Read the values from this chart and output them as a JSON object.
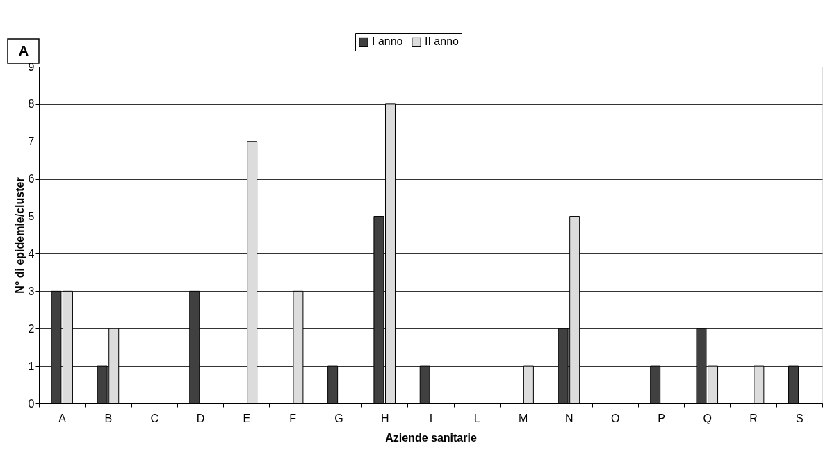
{
  "chart_data": {
    "type": "bar",
    "xlabel": "Aziende sanitarie",
    "ylabel": "N° di epidemie/cluster",
    "categories": [
      "A",
      "B",
      "C",
      "D",
      "E",
      "F",
      "G",
      "H",
      "I",
      "L",
      "M",
      "N",
      "O",
      "P",
      "Q",
      "R",
      "S"
    ],
    "series": [
      {
        "name": "I anno",
        "color": "#404040",
        "values": [
          3,
          1,
          0,
          3,
          0,
          0,
          1,
          5,
          1,
          0,
          0,
          2,
          0,
          1,
          2,
          0,
          1
        ]
      },
      {
        "name": "II anno",
        "color": "#dcdcdc",
        "values": [
          3,
          2,
          0,
          0,
          7,
          3,
          0,
          8,
          0,
          0,
          1,
          5,
          0,
          0,
          1,
          1,
          0
        ]
      }
    ],
    "ylim": [
      0,
      9
    ],
    "yticks": [
      0,
      1,
      2,
      3,
      4,
      5,
      6,
      7,
      8,
      9
    ],
    "grid": "y",
    "legend": "top",
    "annotations": [
      "A"
    ]
  }
}
